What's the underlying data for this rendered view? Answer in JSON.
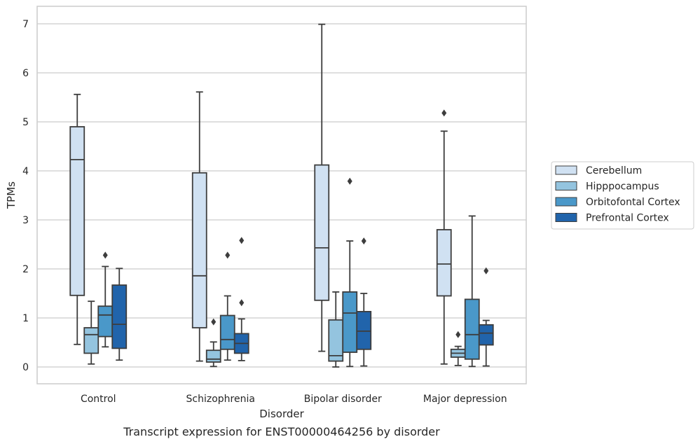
{
  "chart_data": {
    "type": "box",
    "title": "",
    "caption": "Transcript expression for ENST00000464256 by disorder",
    "xlabel": "Disorder",
    "ylabel": "TPMs",
    "ylim": [
      -0.33,
      7.35
    ],
    "yticks": [
      0,
      1,
      2,
      3,
      4,
      5,
      6,
      7
    ],
    "grid": "horizontal",
    "legend_position": "right",
    "categories": [
      "Control",
      "Schizophrenia",
      "Bipolar disorder",
      "Major depression"
    ],
    "series": [
      {
        "name": "Cerebellum",
        "color": "#d0e1f2",
        "boxes": [
          {
            "whisker_low": 0.46,
            "q1": 1.46,
            "median": 4.23,
            "q3": 4.9,
            "whisker_high": 5.56,
            "outliers": []
          },
          {
            "whisker_low": 0.12,
            "q1": 0.8,
            "median": 1.86,
            "q3": 3.96,
            "whisker_high": 5.61,
            "outliers": []
          },
          {
            "whisker_low": 0.32,
            "q1": 1.36,
            "median": 2.43,
            "q3": 4.12,
            "whisker_high": 6.99,
            "outliers": []
          },
          {
            "whisker_low": 0.06,
            "q1": 1.45,
            "median": 2.1,
            "q3": 2.8,
            "whisker_high": 4.81,
            "outliers": [
              5.18
            ]
          }
        ]
      },
      {
        "name": "Hipppocampus",
        "color": "#94c4df",
        "boxes": [
          {
            "whisker_low": 0.06,
            "q1": 0.28,
            "median": 0.66,
            "q3": 0.8,
            "whisker_high": 1.34,
            "outliers": []
          },
          {
            "whisker_low": 0.01,
            "q1": 0.1,
            "median": 0.16,
            "q3": 0.34,
            "whisker_high": 0.51,
            "outliers": [
              0.92
            ]
          },
          {
            "whisker_low": 0.0,
            "q1": 0.12,
            "median": 0.23,
            "q3": 0.96,
            "whisker_high": 1.53,
            "outliers": []
          },
          {
            "whisker_low": 0.03,
            "q1": 0.2,
            "median": 0.28,
            "q3": 0.36,
            "whisker_high": 0.42,
            "outliers": [
              0.66
            ]
          }
        ]
      },
      {
        "name": "Orbitofontal Cortex",
        "color": "#4a98c9",
        "boxes": [
          {
            "whisker_low": 0.41,
            "q1": 0.62,
            "median": 1.06,
            "q3": 1.24,
            "whisker_high": 2.05,
            "outliers": [
              2.28
            ]
          },
          {
            "whisker_low": 0.14,
            "q1": 0.36,
            "median": 0.56,
            "q3": 1.05,
            "whisker_high": 1.45,
            "outliers": [
              2.28
            ]
          },
          {
            "whisker_low": 0.01,
            "q1": 0.3,
            "median": 1.1,
            "q3": 1.53,
            "whisker_high": 2.57,
            "outliers": [
              3.79
            ]
          },
          {
            "whisker_low": 0.01,
            "q1": 0.16,
            "median": 0.66,
            "q3": 1.38,
            "whisker_high": 3.08,
            "outliers": []
          }
        ]
      },
      {
        "name": "Prefrontal Cortex",
        "color": "#2164ab",
        "boxes": [
          {
            "whisker_low": 0.14,
            "q1": 0.38,
            "median": 0.87,
            "q3": 1.67,
            "whisker_high": 2.01,
            "outliers": []
          },
          {
            "whisker_low": 0.13,
            "q1": 0.28,
            "median": 0.48,
            "q3": 0.68,
            "whisker_high": 0.98,
            "outliers": [
              1.31,
              2.58
            ]
          },
          {
            "whisker_low": 0.02,
            "q1": 0.36,
            "median": 0.73,
            "q3": 1.13,
            "whisker_high": 1.5,
            "outliers": [
              2.57
            ]
          },
          {
            "whisker_low": 0.02,
            "q1": 0.45,
            "median": 0.69,
            "q3": 0.86,
            "whisker_high": 0.95,
            "outliers": [
              1.96
            ]
          }
        ]
      }
    ]
  }
}
